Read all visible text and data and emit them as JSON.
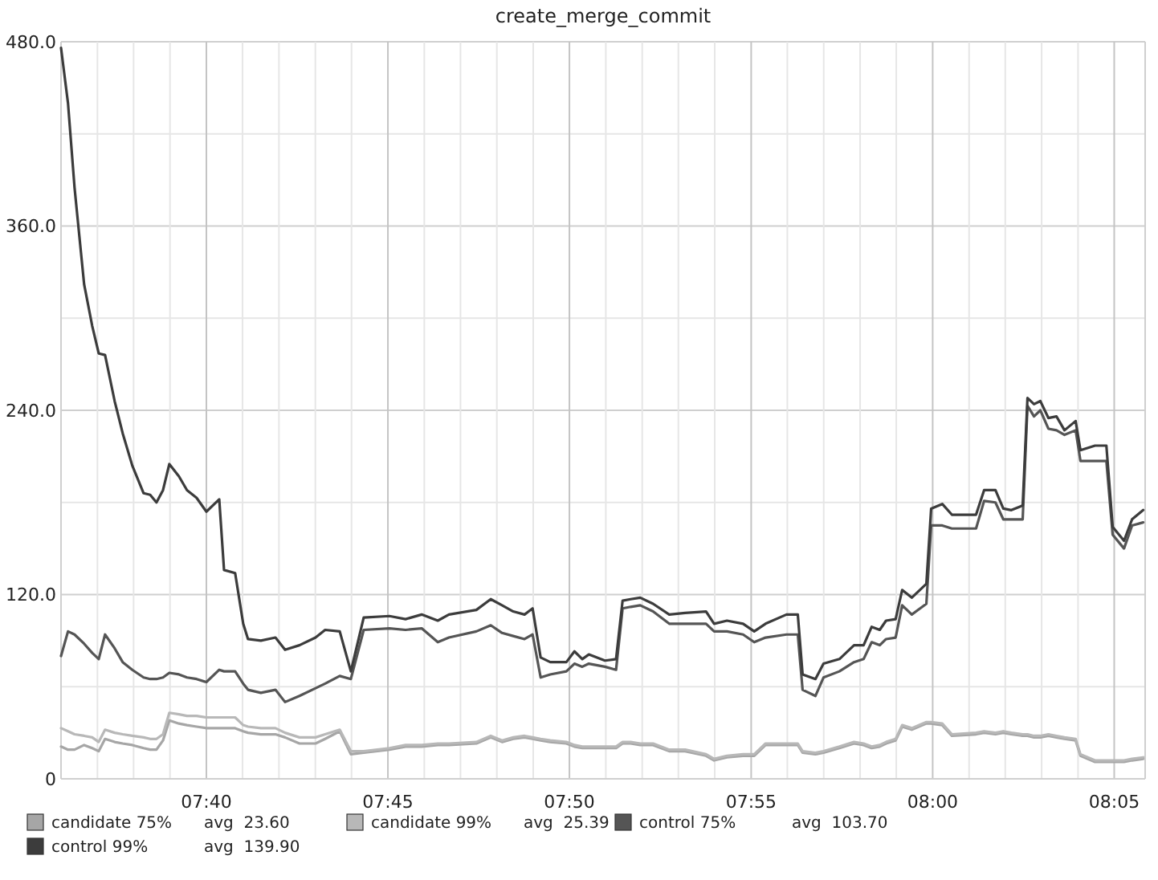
{
  "chart_data": {
    "type": "line",
    "title": "create_merge_commit",
    "x": [
      7.6,
      7.6032,
      7.6062,
      7.6106,
      7.6143,
      7.6173,
      7.6202,
      7.6246,
      7.6283,
      7.6327,
      7.6379,
      7.6409,
      7.6438,
      7.6468,
      7.6497,
      7.6541,
      7.6578,
      7.6622,
      7.6667,
      7.6726,
      7.6748,
      7.6799,
      7.6836,
      7.6858,
      7.6917,
      7.6984,
      7.7028,
      7.7094,
      7.7168,
      7.7212,
      7.7279,
      7.733,
      7.7389,
      7.7507,
      7.7581,
      7.7655,
      7.7729,
      7.778,
      7.7906,
      7.7972,
      7.8024,
      7.8075,
      7.8127,
      7.8164,
      7.8201,
      7.8245,
      7.8319,
      7.8356,
      7.8392,
      7.8422,
      7.8496,
      7.8547,
      7.8577,
      7.8614,
      7.8658,
      7.8717,
      7.8791,
      7.8864,
      7.896,
      7.8997,
      7.9056,
      7.913,
      7.9181,
      7.9233,
      7.9329,
      7.9381,
      7.9403,
      7.9462,
      7.9499,
      7.9572,
      7.9639,
      7.9683,
      7.972,
      7.9757,
      7.9786,
      7.983,
      7.986,
      7.9904,
      7.9971,
      7.9993,
      8.0044,
      8.0088,
      8.0199,
      8.0236,
      8.0288,
      8.0324,
      8.0361,
      8.0413,
      8.0435,
      8.0465,
      8.0494,
      8.0531,
      8.0568,
      8.0605,
      8.0656,
      8.0678,
      8.0745,
      8.0797,
      8.0826,
      8.0878,
      8.0915,
      8.0966
    ],
    "series": [
      {
        "name": "candidate 75%",
        "color": "#a6a6a6",
        "values": [
          21,
          19,
          19,
          22,
          20,
          18,
          26,
          24,
          23,
          22,
          20,
          19,
          19,
          25,
          38,
          36,
          35,
          34,
          33,
          33,
          33,
          33,
          31,
          30,
          29,
          29,
          27,
          23,
          23,
          26,
          31,
          16,
          17,
          19,
          21,
          21,
          22,
          22,
          23,
          27,
          24,
          26,
          27,
          26,
          25,
          24,
          23,
          21,
          20,
          20,
          20,
          20,
          23,
          23,
          22,
          22,
          18,
          18,
          15,
          12,
          14,
          15,
          15,
          22,
          22,
          22,
          17,
          16,
          17,
          20,
          23,
          22,
          20,
          21,
          23,
          25,
          34,
          32,
          36,
          36,
          35,
          28,
          29,
          30,
          29,
          30,
          29,
          28,
          28,
          27,
          27,
          28,
          27,
          26,
          25,
          15,
          11,
          11,
          11,
          11,
          12,
          13
        ]
      },
      {
        "name": "candidate 99%",
        "color": "#b8b8b8",
        "values": [
          33,
          31,
          29,
          28,
          27,
          24,
          32,
          30,
          29,
          28,
          27,
          26,
          26,
          29,
          43,
          42,
          41,
          41,
          40,
          40,
          40,
          40,
          35,
          34,
          33,
          33,
          30,
          27,
          27,
          29,
          32,
          18,
          18,
          20,
          22,
          22,
          23,
          23,
          24,
          28,
          25,
          27,
          28,
          27,
          26,
          25,
          24,
          22,
          21,
          21,
          21,
          21,
          24,
          24,
          23,
          23,
          19,
          19,
          16,
          13,
          15,
          16,
          16,
          23,
          23,
          23,
          18,
          17,
          18,
          21,
          24,
          23,
          21,
          22,
          24,
          26,
          35,
          33,
          37,
          37,
          36,
          29,
          30,
          31,
          30,
          31,
          30,
          29,
          29,
          28,
          28,
          29,
          28,
          27,
          26,
          16,
          12,
          12,
          12,
          12,
          13,
          14
        ]
      },
      {
        "name": "control 75%",
        "color": "#555555",
        "values": [
          80,
          96,
          94,
          88,
          82,
          78,
          94,
          85,
          76,
          71,
          66,
          65,
          65,
          66,
          69,
          68,
          66,
          65,
          63,
          71,
          70,
          70,
          62,
          58,
          56,
          58,
          50,
          54,
          59,
          62,
          67,
          65,
          97,
          98,
          97,
          98,
          89,
          92,
          96,
          100,
          95,
          93,
          91,
          94,
          66,
          68,
          70,
          75,
          73,
          75,
          73,
          71,
          111,
          112,
          113,
          109,
          101,
          101,
          101,
          96,
          96,
          94,
          89,
          92,
          94,
          94,
          58,
          54,
          66,
          70,
          76,
          78,
          89,
          87,
          91,
          92,
          113,
          107,
          114,
          165,
          165,
          163,
          163,
          181,
          180,
          169,
          169,
          169,
          243,
          236,
          240,
          228,
          227,
          224,
          227,
          207,
          207,
          207,
          159,
          150,
          165,
          167
        ]
      },
      {
        "name": "control 99%",
        "color": "#3c3c3c",
        "values": [
          476,
          440,
          385,
          322,
          295,
          277,
          276,
          246,
          225,
          204,
          186,
          185,
          180,
          188,
          205,
          197,
          188,
          183,
          174,
          182,
          136,
          134,
          101,
          91,
          90,
          92,
          84,
          87,
          92,
          97,
          96,
          70,
          105,
          106,
          104,
          107,
          103,
          107,
          110,
          117,
          113,
          109,
          107,
          111,
          79,
          76,
          76,
          83,
          78,
          81,
          77,
          78,
          116,
          117,
          118,
          114,
          107,
          108,
          109,
          101,
          103,
          101,
          96,
          101,
          107,
          107,
          68,
          65,
          75,
          78,
          87,
          87,
          99,
          97,
          103,
          104,
          123,
          118,
          127,
          176,
          179,
          172,
          172,
          188,
          188,
          176,
          175,
          178,
          248,
          244,
          246,
          235,
          236,
          227,
          233,
          214,
          217,
          217,
          164,
          155,
          169,
          175
        ]
      }
    ],
    "xlim": [
      7.6,
      8.0975
    ],
    "xticks": [
      {
        "value": 7.6167,
        "label": null
      },
      {
        "value": 7.6333,
        "label": null
      },
      {
        "value": 7.65,
        "label": null
      },
      {
        "value": 7.6667,
        "label": "07:40"
      },
      {
        "value": 7.6833,
        "label": null
      },
      {
        "value": 7.7,
        "label": null
      },
      {
        "value": 7.7167,
        "label": null
      },
      {
        "value": 7.7333,
        "label": null
      },
      {
        "value": 7.75,
        "label": "07:45"
      },
      {
        "value": 7.7667,
        "label": null
      },
      {
        "value": 7.7833,
        "label": null
      },
      {
        "value": 7.8,
        "label": null
      },
      {
        "value": 7.8167,
        "label": null
      },
      {
        "value": 7.8333,
        "label": "07:50"
      },
      {
        "value": 7.85,
        "label": null
      },
      {
        "value": 7.8667,
        "label": null
      },
      {
        "value": 7.8833,
        "label": null
      },
      {
        "value": 7.9,
        "label": null
      },
      {
        "value": 7.9167,
        "label": "07:55"
      },
      {
        "value": 7.9333,
        "label": null
      },
      {
        "value": 7.95,
        "label": null
      },
      {
        "value": 7.9667,
        "label": null
      },
      {
        "value": 7.9833,
        "label": null
      },
      {
        "value": 8,
        "label": "08:00"
      },
      {
        "value": 8.0167,
        "label": null
      },
      {
        "value": 8.0333,
        "label": null
      },
      {
        "value": 8.05,
        "label": null
      },
      {
        "value": 8.0667,
        "label": null
      },
      {
        "value": 8.0833,
        "label": "08:05"
      }
    ],
    "ylim": [
      0,
      480
    ],
    "yticks": [
      0,
      {
        "value": 60,
        "label": null
      },
      {
        "value": 120,
        "label": "120.0"
      },
      {
        "value": 180,
        "label": null
      },
      {
        "value": 240,
        "label": "240.0"
      },
      {
        "value": 300,
        "label": null
      },
      {
        "value": 360,
        "label": "360.0"
      },
      {
        "value": 420,
        "label": null
      },
      {
        "value": 480,
        "label": "480.0"
      }
    ],
    "grid": true,
    "legend": "bottom",
    "marker": "none",
    "line_style": "solid",
    "annotations": [
      "avg  23.60",
      "avg  25.39",
      "avg  103.70",
      "avg  139.90"
    ]
  }
}
